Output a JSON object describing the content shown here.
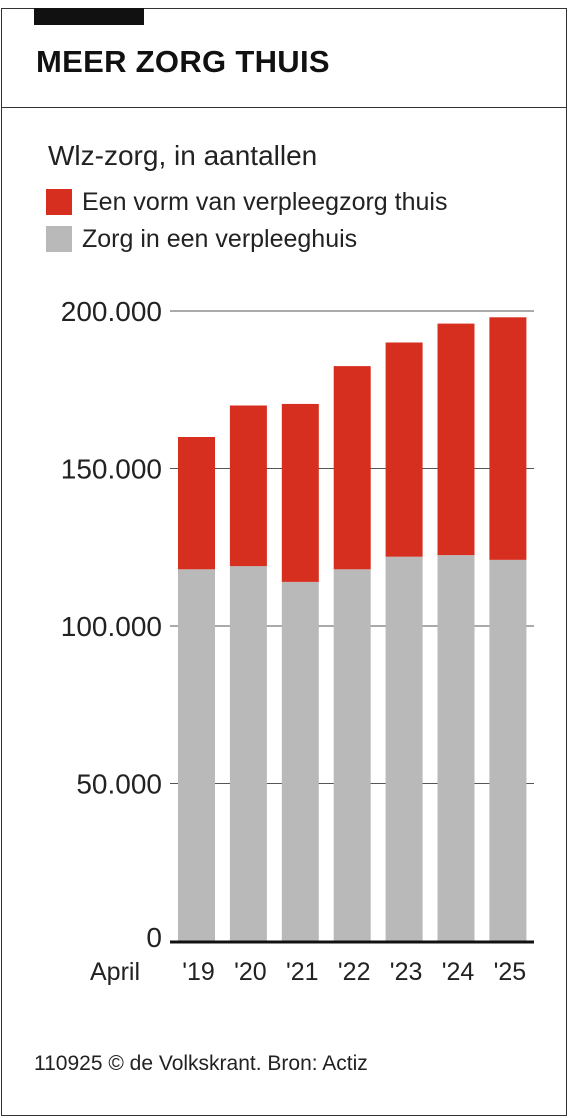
{
  "header": {
    "title": "MEER ZORG THUIS"
  },
  "subtitle": "Wlz-zorg, in aantallen",
  "colors": {
    "home": "#d62e1f",
    "nursing": "#b9b9b9",
    "accent": "#111111"
  },
  "legend": [
    {
      "label": "Een vorm van verpleegzorg thuis",
      "color": "#d62e1f"
    },
    {
      "label": "Zorg in een verpleeghuis",
      "color": "#b9b9b9"
    }
  ],
  "source": "110925 © de Volkskrant. Bron: Actiz",
  "chart_data": {
    "type": "bar",
    "stacked": true,
    "x_prefix": "April",
    "categories": [
      "'19",
      "'20",
      "'21",
      "'22",
      "'23",
      "'24",
      "'25"
    ],
    "series": [
      {
        "name": "Zorg in een verpleeghuis",
        "color": "#b9b9b9",
        "values": [
          118000,
          119000,
          114000,
          118000,
          122000,
          122500,
          121000
        ]
      },
      {
        "name": "Een vorm van verpleegzorg thuis",
        "color": "#d62e1f",
        "values": [
          42000,
          51000,
          56500,
          64500,
          68000,
          73500,
          77000
        ]
      }
    ],
    "ylim": [
      0,
      200000
    ],
    "yticks": [
      0,
      50000,
      100000,
      150000,
      200000
    ],
    "ytick_labels": [
      "0",
      "50.000",
      "100.000",
      "150.000",
      "200.000"
    ],
    "grid": true,
    "legend_position": "top-left"
  }
}
